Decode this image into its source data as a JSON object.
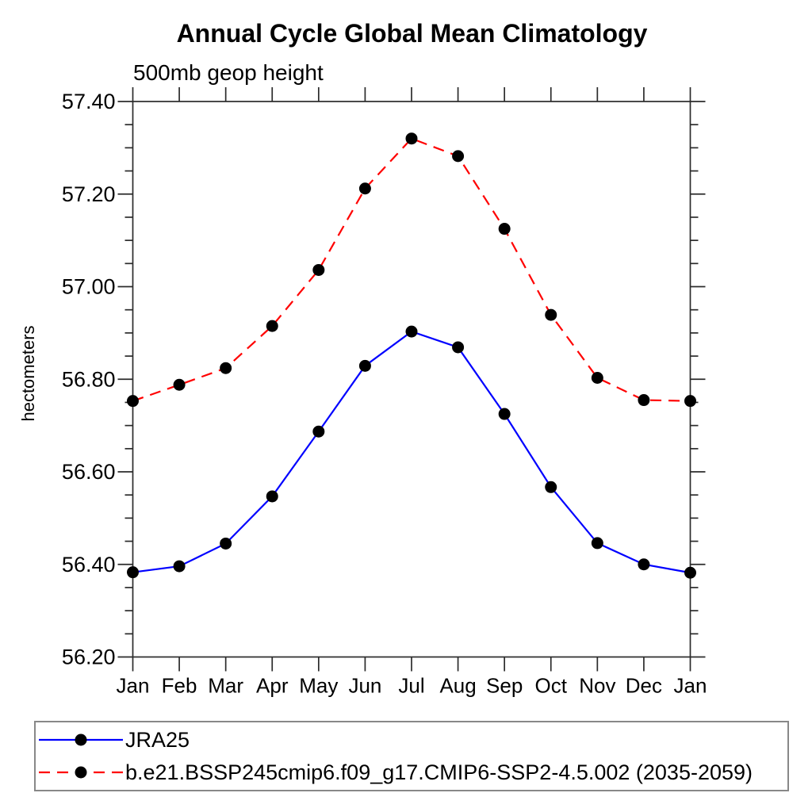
{
  "window": {
    "background": "#ffffff"
  },
  "chart_data": {
    "type": "line",
    "title": "Annual Cycle Global Mean Climatology",
    "subtitle": "500mb geop height",
    "ylabel": "hectometers",
    "xlabel": "",
    "categories": [
      "Jan",
      "Feb",
      "Mar",
      "Apr",
      "May",
      "Jun",
      "Jul",
      "Aug",
      "Sep",
      "Oct",
      "Nov",
      "Dec",
      "Jan"
    ],
    "ylim": [
      56.2,
      57.4
    ],
    "ytick_step": 0.2,
    "yminor_step": 0.05,
    "ytick_labels": [
      "56.20",
      "56.40",
      "56.60",
      "56.80",
      "57.00",
      "57.20",
      "57.40"
    ],
    "grid": false,
    "legend_position": "bottom-outside",
    "axis_color": "#2b2b2b",
    "text_color": "#000000",
    "marker_color": "#000000",
    "series": [
      {
        "name": "JRA25",
        "color": "#0000ff",
        "line_style": "solid",
        "marker": "filled-circle",
        "values": [
          56.383,
          56.396,
          56.445,
          56.547,
          56.687,
          56.829,
          56.903,
          56.869,
          56.725,
          56.567,
          56.446,
          56.4,
          56.382
        ]
      },
      {
        "name": "b.e21.BSSP245cmip6.f09_g17.CMIP6-SSP2-4.5.002 (2035-2059)",
        "color": "#ff0000",
        "line_style": "dashed",
        "marker": "filled-circle",
        "values": [
          56.753,
          56.788,
          56.824,
          56.915,
          57.036,
          57.212,
          57.32,
          57.282,
          57.125,
          56.939,
          56.803,
          56.755,
          56.753
        ]
      }
    ]
  }
}
